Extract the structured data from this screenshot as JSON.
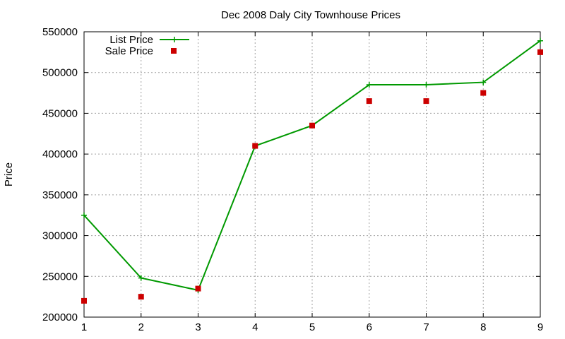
{
  "chart_data": {
    "type": "line",
    "title": "Dec 2008 Daly City Townhouse Prices",
    "xlabel": "",
    "ylabel": "Price",
    "xlim": [
      1,
      9
    ],
    "ylim": [
      200000,
      550000
    ],
    "x_ticks": [
      1,
      2,
      3,
      4,
      5,
      6,
      7,
      8,
      9
    ],
    "y_ticks": [
      200000,
      250000,
      300000,
      350000,
      400000,
      450000,
      500000,
      550000
    ],
    "grid": true,
    "legend_position": "top-left",
    "series": [
      {
        "name": "List Price",
        "style": "line-with-plus-markers",
        "color": "#009900",
        "x": [
          1,
          2,
          3,
          4,
          5,
          6,
          7,
          8,
          9
        ],
        "y": [
          325000,
          248000,
          233000,
          410000,
          435000,
          485000,
          485000,
          488000,
          539000
        ]
      },
      {
        "name": "Sale Price",
        "style": "square-points",
        "color": "#cc0000",
        "x": [
          1,
          2,
          3,
          4,
          5,
          6,
          7,
          8,
          9
        ],
        "y": [
          220000,
          225000,
          235000,
          410000,
          435000,
          465000,
          465000,
          475000,
          525000
        ]
      }
    ]
  }
}
